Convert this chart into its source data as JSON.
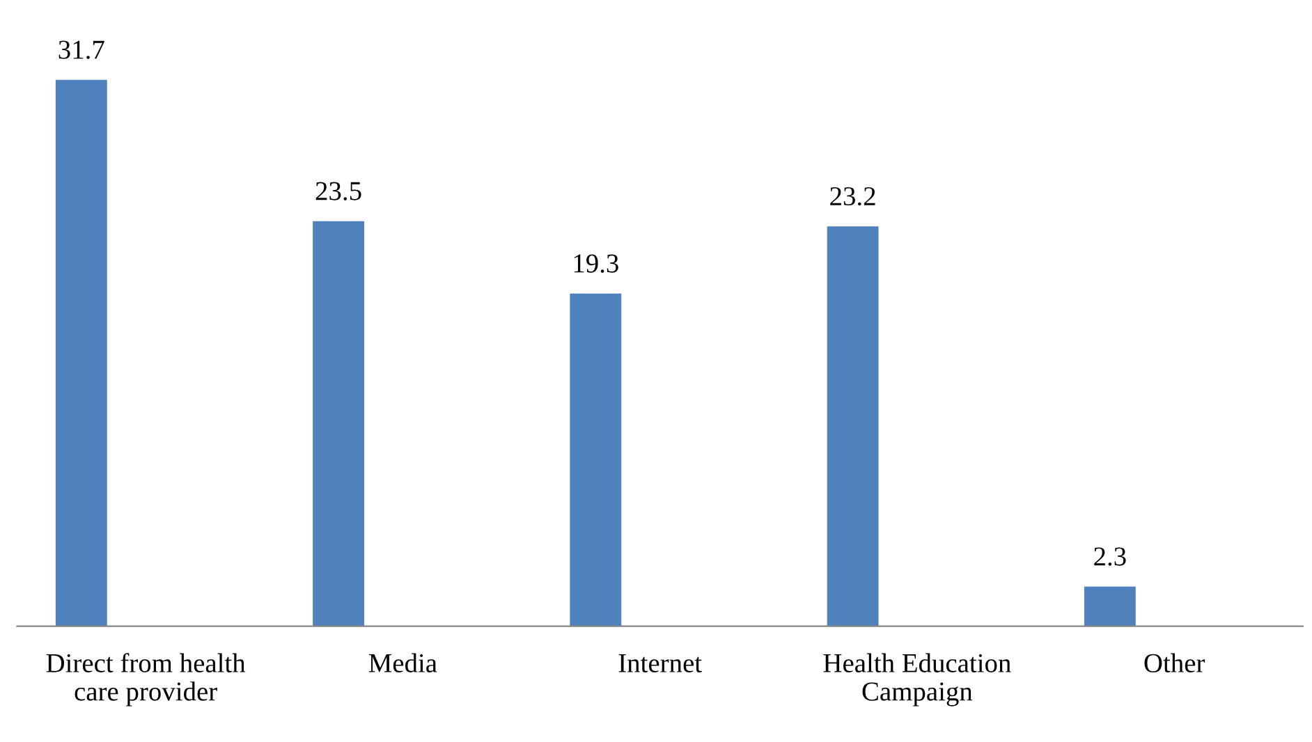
{
  "chart_data": {
    "type": "bar",
    "categories": [
      "Direct from health\ncare provider",
      "Media",
      "Internet",
      "Health Education\nCampaign",
      "Other"
    ],
    "values": [
      31.7,
      23.5,
      19.3,
      23.2,
      2.3
    ],
    "color": "#4f81bd",
    "data_labels": true,
    "grid": false,
    "legend": false
  }
}
